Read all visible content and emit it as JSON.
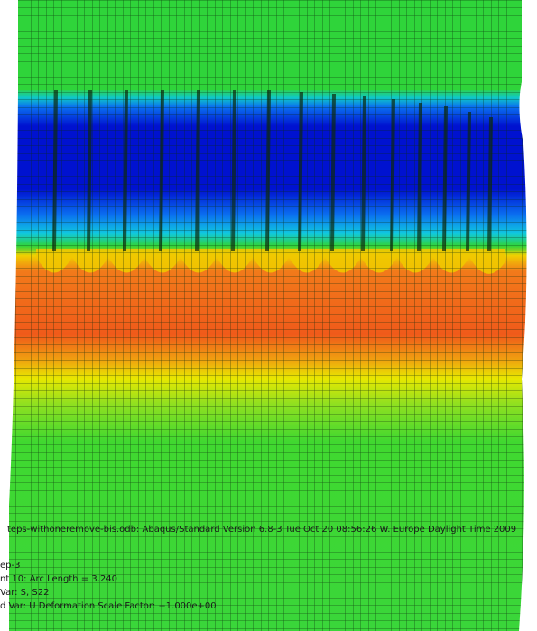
{
  "viewport": {
    "legend": {
      "odb_line": "teps-withoneremove-bis.odb:   Abaqus/Standard Version 6.8-3    Tue Oct 20 08:56:26 W. Europe Daylight Time 2009",
      "step": "ep-3",
      "increment": "nt    10: Arc Length =     3.240",
      "primary_var": "Var: S, S22",
      "deformed_var": "d Var: U   Deformation Scale Factor: +1.000e+00"
    }
  }
}
